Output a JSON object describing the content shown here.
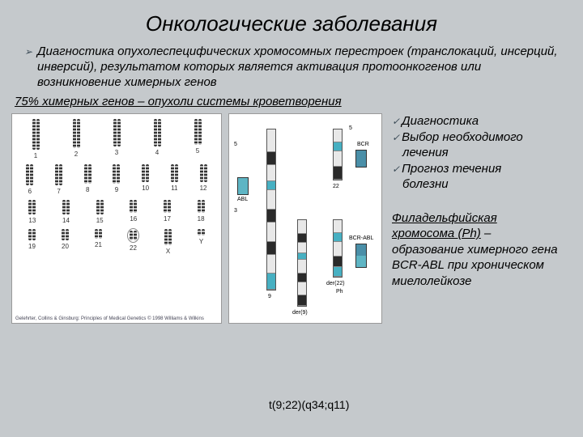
{
  "title": "Онкологические заболевания",
  "main_paragraph": "Диагностика опухолеспецифических хромосомных перестроек (транслокаций, инсерций, инверсий), результатом которых является активация протоонкогенов или возникновение химерных генов",
  "subline": "75% химерных генов – опухоли системы кроветворения",
  "checklist": {
    "item1": "Диагностика",
    "item2": "Выбор необходимого",
    "item2b": "лечения",
    "item3": "Прогноз течения",
    "item3b": "болезни"
  },
  "ph_text": {
    "line1": "Филадельфийская",
    "line2": "хромосома (Ph)",
    "dash": " –",
    "rest": "образование химерного гена  BCR-ABL при хроническом миелолейкозе"
  },
  "caption": "t(9;22)(q34;q11)",
  "karyotype": {
    "rows": [
      {
        "heights": [
          38,
          36,
          34,
          34,
          32
        ],
        "labels": [
          "1",
          "2",
          "3",
          "4",
          "5"
        ]
      },
      {
        "heights": [
          26,
          26,
          24,
          24,
          22,
          22,
          22
        ],
        "labels": [
          "6",
          "7",
          "8",
          "9",
          "10",
          "11",
          "12"
        ]
      },
      {
        "heights": [
          18,
          18,
          18,
          16,
          16,
          16
        ],
        "labels": [
          "13",
          "14",
          "15",
          "16",
          "17",
          "18"
        ]
      },
      {
        "heights": [
          14,
          14,
          12,
          12,
          20,
          8
        ],
        "labels": [
          "19",
          "20",
          "21",
          "22",
          "X",
          "Y"
        ]
      }
    ],
    "circle_idx": 3,
    "footer": "Gelehrter, Collins & Ginsburg: Principles of Medical Genetics © 1998 Williams & Wilkins"
  },
  "diagram": {
    "labels": {
      "top5": "5",
      "top3_22": "3",
      "abl": "ABL",
      "bcr": "BCR",
      "bcrabl": "BCR-ABL",
      "n9": "9",
      "n22": "22",
      "der9": "der(9)",
      "der22": "der(22)",
      "ph": "Ph"
    },
    "colors": {
      "abl": "#5eb5c4",
      "bcr": "#4a8fa8",
      "band_dark": "#2a2a2a",
      "band_light": "#e8e8e8",
      "centromere": "#47b0c2"
    }
  }
}
